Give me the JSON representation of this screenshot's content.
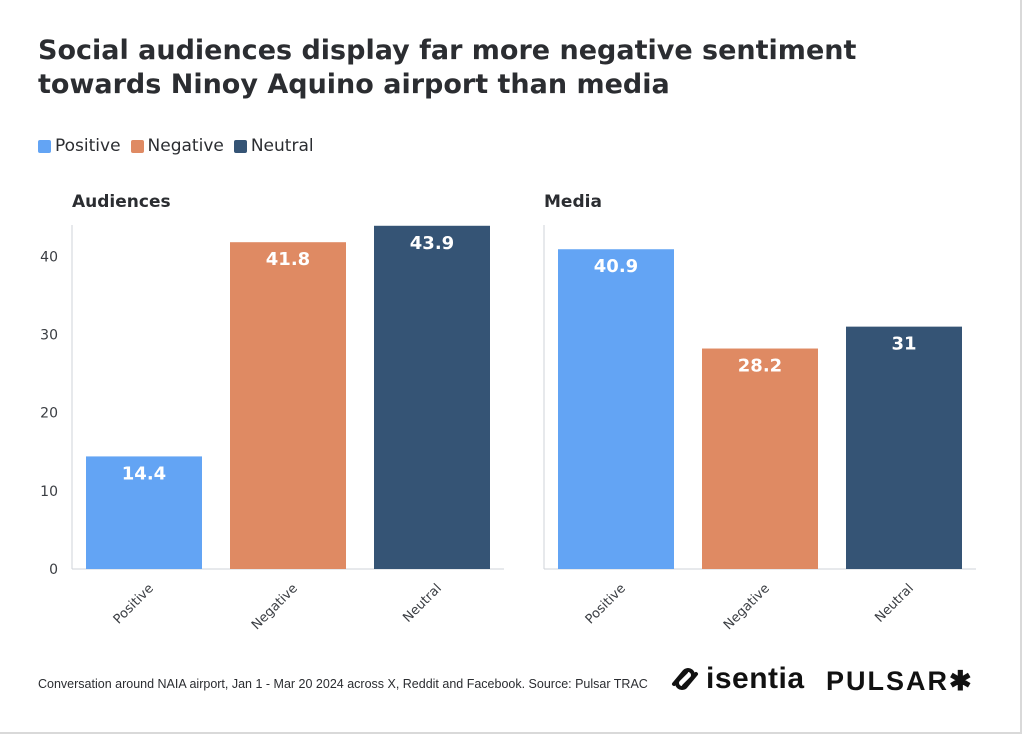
{
  "title": "Social audiences display far more negative sentiment towards Ninoy Aquino airport than media",
  "legend": [
    {
      "label": "Positive",
      "color": "#63a4f4"
    },
    {
      "label": "Negative",
      "color": "#df8a63"
    },
    {
      "label": "Neutral",
      "color": "#355475"
    }
  ],
  "footer": {
    "note": "Conversation around NAIA airport, Jan 1 - Mar 20 2024 across X, Reddit and Facebook. Source: Pulsar TRAC",
    "logo_isentia": "isentia",
    "logo_pulsar": "PULSAR✱"
  },
  "chart_data": [
    {
      "type": "bar",
      "title": "Audiences",
      "categories": [
        "Positive",
        "Negative",
        "Neutral"
      ],
      "values": [
        14.4,
        41.8,
        43.9
      ],
      "colors": [
        "#63a4f4",
        "#df8a63",
        "#355475"
      ],
      "ylim": [
        0,
        44
      ],
      "yticks": [
        0,
        10,
        20,
        30,
        40
      ],
      "grid": false,
      "legend_position": "top-left",
      "xlabel": "",
      "ylabel": ""
    },
    {
      "type": "bar",
      "title": "Media",
      "categories": [
        "Positive",
        "Negative",
        "Neutral"
      ],
      "values": [
        40.9,
        28.2,
        31
      ],
      "colors": [
        "#63a4f4",
        "#df8a63",
        "#355475"
      ],
      "ylim": [
        0,
        44
      ],
      "yticks": [],
      "grid": false,
      "xlabel": "",
      "ylabel": ""
    }
  ]
}
